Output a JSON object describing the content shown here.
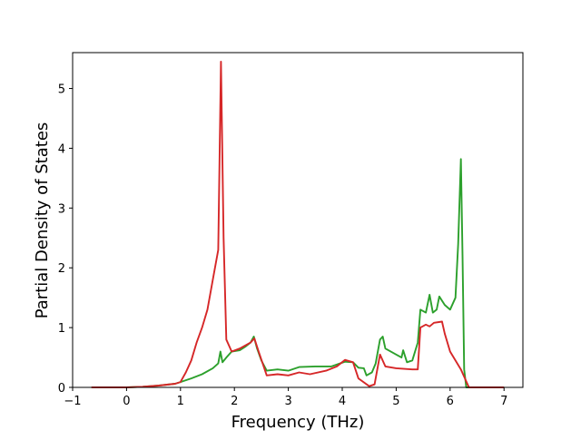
{
  "chart_data": {
    "type": "line",
    "xlabel": "Frequency (THz)",
    "ylabel": "Partial Density of States",
    "xlim": [
      -1,
      7.35
    ],
    "ylim": [
      0,
      5.6
    ],
    "xticks": [
      -1,
      0,
      1,
      2,
      3,
      4,
      5,
      6,
      7
    ],
    "yticks": [
      0,
      1,
      2,
      3,
      4,
      5
    ],
    "grid": false,
    "series": [
      {
        "color": "#2ca02c",
        "points": [
          [
            -0.65,
            0
          ],
          [
            0.0,
            0
          ],
          [
            0.3,
            0.01
          ],
          [
            0.6,
            0.03
          ],
          [
            0.9,
            0.06
          ],
          [
            1.0,
            0.09
          ],
          [
            1.2,
            0.15
          ],
          [
            1.4,
            0.22
          ],
          [
            1.6,
            0.32
          ],
          [
            1.7,
            0.4
          ],
          [
            1.74,
            0.6
          ],
          [
            1.78,
            0.42
          ],
          [
            1.85,
            0.5
          ],
          [
            1.95,
            0.6
          ],
          [
            2.1,
            0.62
          ],
          [
            2.2,
            0.68
          ],
          [
            2.3,
            0.75
          ],
          [
            2.36,
            0.85
          ],
          [
            2.42,
            0.65
          ],
          [
            2.5,
            0.45
          ],
          [
            2.6,
            0.28
          ],
          [
            2.8,
            0.3
          ],
          [
            3.0,
            0.28
          ],
          [
            3.2,
            0.34
          ],
          [
            3.5,
            0.35
          ],
          [
            3.8,
            0.35
          ],
          [
            4.05,
            0.43
          ],
          [
            4.2,
            0.42
          ],
          [
            4.3,
            0.33
          ],
          [
            4.4,
            0.32
          ],
          [
            4.45,
            0.2
          ],
          [
            4.55,
            0.25
          ],
          [
            4.62,
            0.4
          ],
          [
            4.7,
            0.8
          ],
          [
            4.75,
            0.85
          ],
          [
            4.8,
            0.65
          ],
          [
            5.0,
            0.55
          ],
          [
            5.1,
            0.5
          ],
          [
            5.13,
            0.62
          ],
          [
            5.2,
            0.42
          ],
          [
            5.3,
            0.45
          ],
          [
            5.4,
            0.75
          ],
          [
            5.45,
            1.3
          ],
          [
            5.55,
            1.25
          ],
          [
            5.62,
            1.55
          ],
          [
            5.68,
            1.25
          ],
          [
            5.75,
            1.3
          ],
          [
            5.8,
            1.52
          ],
          [
            5.9,
            1.38
          ],
          [
            6.0,
            1.3
          ],
          [
            6.1,
            1.5
          ],
          [
            6.15,
            2.4
          ],
          [
            6.2,
            3.82
          ],
          [
            6.23,
            2.2
          ],
          [
            6.26,
            0.3
          ],
          [
            6.3,
            0
          ],
          [
            7.0,
            0
          ]
        ]
      },
      {
        "color": "#d62728",
        "points": [
          [
            -0.65,
            0
          ],
          [
            0.0,
            0
          ],
          [
            0.3,
            0.01
          ],
          [
            0.6,
            0.03
          ],
          [
            0.9,
            0.06
          ],
          [
            1.0,
            0.09
          ],
          [
            1.1,
            0.25
          ],
          [
            1.2,
            0.45
          ],
          [
            1.3,
            0.75
          ],
          [
            1.4,
            1.0
          ],
          [
            1.5,
            1.3
          ],
          [
            1.6,
            1.8
          ],
          [
            1.7,
            2.3
          ],
          [
            1.75,
            5.45
          ],
          [
            1.8,
            2.5
          ],
          [
            1.85,
            0.8
          ],
          [
            1.95,
            0.6
          ],
          [
            2.1,
            0.65
          ],
          [
            2.3,
            0.75
          ],
          [
            2.37,
            0.82
          ],
          [
            2.45,
            0.6
          ],
          [
            2.6,
            0.2
          ],
          [
            2.8,
            0.22
          ],
          [
            3.0,
            0.2
          ],
          [
            3.2,
            0.25
          ],
          [
            3.4,
            0.22
          ],
          [
            3.7,
            0.28
          ],
          [
            3.9,
            0.35
          ],
          [
            4.05,
            0.46
          ],
          [
            4.2,
            0.42
          ],
          [
            4.3,
            0.15
          ],
          [
            4.5,
            0.02
          ],
          [
            4.6,
            0.05
          ],
          [
            4.7,
            0.55
          ],
          [
            4.8,
            0.35
          ],
          [
            5.0,
            0.32
          ],
          [
            5.3,
            0.3
          ],
          [
            5.4,
            0.3
          ],
          [
            5.45,
            1.0
          ],
          [
            5.55,
            1.05
          ],
          [
            5.62,
            1.02
          ],
          [
            5.7,
            1.08
          ],
          [
            5.85,
            1.1
          ],
          [
            5.9,
            0.9
          ],
          [
            6.0,
            0.6
          ],
          [
            6.2,
            0.3
          ],
          [
            6.3,
            0.1
          ],
          [
            6.35,
            0
          ],
          [
            7.0,
            0
          ]
        ]
      }
    ]
  }
}
